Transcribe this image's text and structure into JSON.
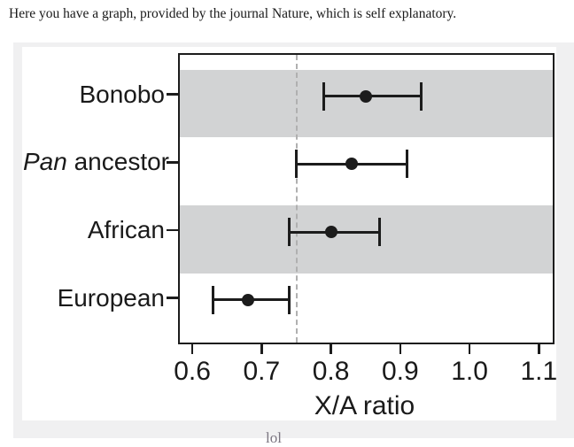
{
  "page": {
    "intro_text": "Here you have a graph, provided by the journal Nature, which is self explanatory.",
    "cutoff_text": "lol"
  },
  "chart_data": {
    "type": "scatter",
    "subtype": "dot-plot-with-error-bars",
    "title": "",
    "xlabel": "X/A ratio",
    "xlim": [
      0.582,
      1.12
    ],
    "xticks": [
      0.6,
      0.7,
      0.8,
      0.9,
      1.0,
      1.1
    ],
    "grid": false,
    "legend": "none",
    "reference_line": {
      "x": 0.75,
      "style": "dashed"
    },
    "categories": [
      {
        "italic_part": "",
        "text": "Bonobo"
      },
      {
        "italic_part": "Pan",
        "text": " ancestor"
      },
      {
        "italic_part": "",
        "text": "African"
      },
      {
        "italic_part": "",
        "text": "European"
      }
    ],
    "points": [
      {
        "label": "Bonobo",
        "value": 0.85,
        "ci_low": 0.79,
        "ci_high": 0.93
      },
      {
        "label": "Pan ancestor",
        "value": 0.83,
        "ci_low": 0.75,
        "ci_high": 0.91
      },
      {
        "label": "African",
        "value": 0.8,
        "ci_low": 0.74,
        "ci_high": 0.87
      },
      {
        "label": "European",
        "value": 0.68,
        "ci_low": 0.63,
        "ci_high": 0.74
      }
    ],
    "shaded_band_rows": [
      0,
      2
    ],
    "colors": {
      "band_gray": "#d2d3d4",
      "marker_black": "#1c1c1c",
      "reference_dash": "#b0b0b0",
      "figure_background": "#f0f0f1",
      "panel_white": "#ffffff",
      "text": "#1a1a1a"
    }
  }
}
